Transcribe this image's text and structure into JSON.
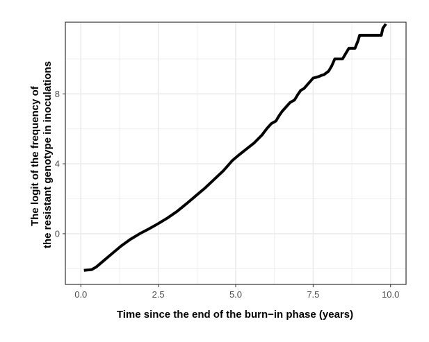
{
  "chart_data": {
    "type": "line",
    "title": "",
    "xlabel": "Time since the end of the burn−in phase (years)",
    "ylabel_lines": [
      "The logit of the frequency of",
      "the resistant genotype in inoculations"
    ],
    "xlim": [
      -0.5,
      10.5
    ],
    "ylim": [
      -2.9,
      12.1
    ],
    "x_ticks": [
      0,
      2.5,
      5,
      7.5,
      10
    ],
    "x_tick_labels": [
      "0.0",
      "2.5",
      "5.0",
      "7.5",
      "10.0"
    ],
    "y_ticks": [
      0,
      4,
      8
    ],
    "y_tick_labels": [
      "0",
      "4",
      "8"
    ],
    "x_minor_ticks": [
      1.25,
      3.75,
      6.25,
      8.75
    ],
    "y_minor_ticks": [
      -2,
      2,
      6,
      10
    ],
    "grid": true,
    "legend": "none",
    "colors": {
      "line": "#000000",
      "grid": "#ebebeb",
      "panel_border": "#333333",
      "background": "#ffffff"
    },
    "series": [
      {
        "values_x": [
          0.1,
          0.35,
          0.5,
          0.7,
          1.0,
          1.3,
          1.6,
          1.9,
          2.2,
          2.5,
          2.8,
          3.1,
          3.4,
          3.7,
          4.0,
          4.3,
          4.6,
          4.9,
          5.1,
          5.35,
          5.6,
          5.85,
          6.0,
          6.15,
          6.3,
          6.4,
          6.5,
          6.6,
          6.75,
          6.9,
          7.0,
          7.1,
          7.2,
          7.35,
          7.5,
          7.6,
          7.7,
          7.75,
          7.85,
          8.0,
          8.1,
          8.2,
          8.3,
          8.45,
          8.55,
          8.65,
          8.75,
          8.85,
          8.95,
          9.0,
          9.05,
          9.45,
          9.6,
          9.7,
          9.75,
          9.85
        ],
        "values_y": [
          -2.1,
          -2.05,
          -1.9,
          -1.6,
          -1.15,
          -0.7,
          -0.32,
          0.0,
          0.28,
          0.58,
          0.9,
          1.27,
          1.7,
          2.15,
          2.6,
          3.1,
          3.6,
          4.2,
          4.5,
          4.85,
          5.2,
          5.65,
          6.0,
          6.3,
          6.45,
          6.75,
          7.0,
          7.2,
          7.5,
          7.65,
          7.95,
          8.2,
          8.3,
          8.6,
          8.9,
          8.95,
          9.0,
          9.05,
          9.1,
          9.3,
          9.6,
          10.0,
          10.0,
          10.0,
          10.3,
          10.6,
          10.6,
          10.6,
          11.05,
          11.35,
          11.35,
          11.35,
          11.35,
          11.35,
          11.75,
          12.0
        ]
      }
    ]
  }
}
